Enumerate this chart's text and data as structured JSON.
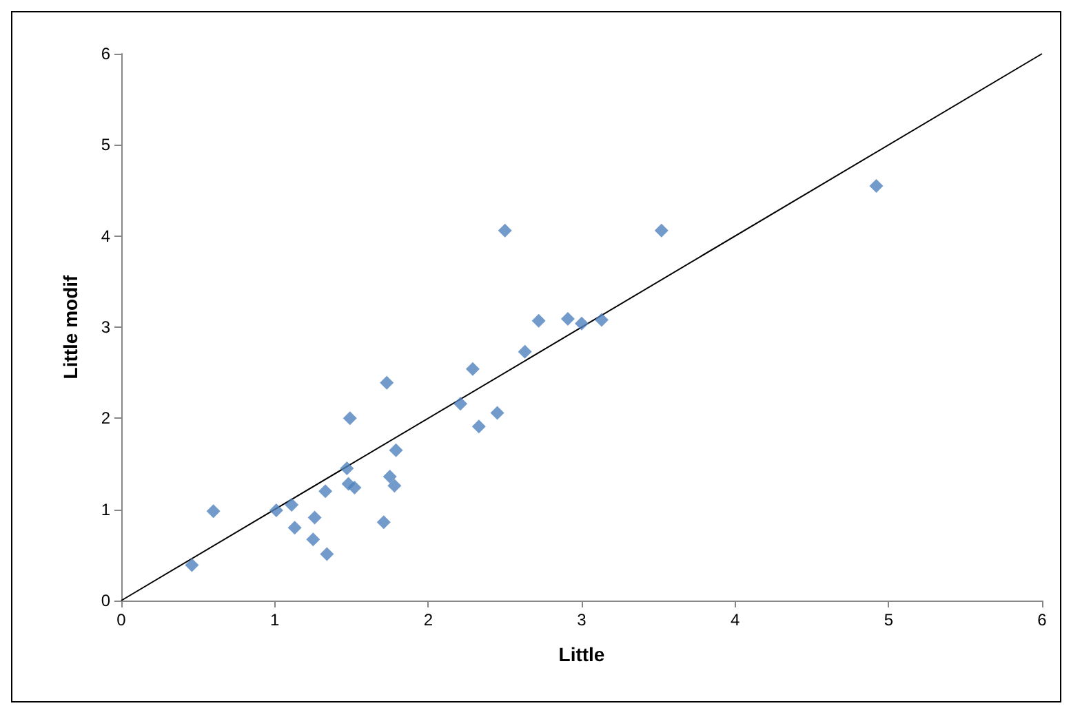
{
  "chart_data": {
    "type": "scatter",
    "xlabel": "Little",
    "ylabel": "Little modif",
    "xlim": [
      0,
      6
    ],
    "ylim": [
      0,
      6
    ],
    "xticks": [
      0,
      1,
      2,
      3,
      4,
      5,
      6
    ],
    "yticks": [
      0,
      1,
      2,
      3,
      4,
      5,
      6
    ],
    "grid": false,
    "marker": "diamond",
    "series": [
      {
        "color": "#4f81bd",
        "x": [
          0.46,
          0.6,
          1.01,
          1.11,
          1.13,
          1.25,
          1.26,
          1.33,
          1.34,
          1.47,
          1.48,
          1.49,
          1.52,
          1.71,
          1.73,
          1.75,
          1.78,
          1.79,
          2.21,
          2.29,
          2.33,
          2.45,
          2.5,
          2.63,
          2.72,
          2.91,
          3.0,
          3.13,
          3.52,
          4.92
        ],
        "values": [
          0.39,
          0.98,
          0.99,
          1.05,
          0.8,
          0.67,
          0.91,
          1.2,
          0.51,
          1.45,
          1.28,
          2.0,
          1.24,
          0.86,
          2.39,
          1.36,
          1.26,
          1.65,
          2.16,
          2.54,
          1.91,
          2.06,
          4.06,
          2.73,
          3.07,
          3.09,
          3.04,
          3.08,
          4.06,
          4.55
        ]
      },
      {
        "type": "line",
        "color": "#000000",
        "x": [
          0,
          6
        ],
        "values": [
          0,
          6
        ],
        "marker": "none",
        "line_style": "solid"
      }
    ]
  }
}
